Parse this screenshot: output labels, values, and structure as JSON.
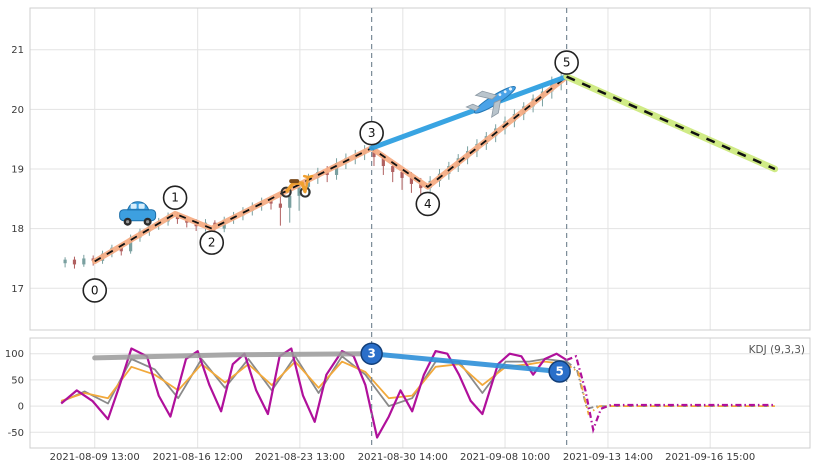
{
  "kdj_label": "KDJ (9,3,3)",
  "colors": {
    "grid": "#e3e3e3",
    "panel_border": "#cfcfcf",
    "tick_text": "#3a3a3a",
    "vline": "#7a8a96",
    "wave_orange": "#f5ad85",
    "wave_green": "#cdea7f",
    "wave_blue": "#2e9fe0",
    "wave_dash": "#111111",
    "candle_up": "#7aa0a0",
    "candle_down": "#b06060",
    "kdj_j": "#b0109b",
    "kdj_d": "#f2a93b",
    "kdj_k": "#8a8a8a",
    "overlay_gray": "#9a9a9a",
    "overlay_blue": "#2e8fd8",
    "marker_fill": "#2a6fc9",
    "marker_stroke": "#123f7a",
    "pivot_circle_fill": "#ffffff",
    "pivot_circle_stroke": "#222222",
    "car": "#3da0e0",
    "scooter": "#f0a030",
    "plane": "#4aa3e8"
  },
  "chart_data": {
    "type": "candlestick+line",
    "title": "",
    "x_ticks": [
      {
        "f": 0.083,
        "label": "2021-08-09 13:00"
      },
      {
        "f": 0.215,
        "label": "2021-08-16 12:00"
      },
      {
        "f": 0.346,
        "label": "2021-08-23 13:00"
      },
      {
        "f": 0.478,
        "label": "2021-08-30 14:00"
      },
      {
        "f": 0.609,
        "label": "2021-09-08 10:00"
      },
      {
        "f": 0.741,
        "label": "2021-09-13 14:00"
      },
      {
        "f": 0.872,
        "label": "2021-09-16 15:00"
      }
    ],
    "vlines": [
      0.438,
      0.688
    ],
    "main": {
      "ylim": [
        16.3,
        21.7
      ],
      "yticks": [
        21,
        20,
        19,
        18,
        17
      ],
      "pivots": [
        {
          "n": "0",
          "f": 0.083,
          "price": 17.45,
          "dy": 29
        },
        {
          "n": "1",
          "f": 0.186,
          "price": 18.25,
          "dy": -16
        },
        {
          "n": "2",
          "f": 0.233,
          "price": 18.0,
          "dy": 14
        },
        {
          "n": "3",
          "f": 0.438,
          "price": 19.35,
          "dy": -15
        },
        {
          "n": "4",
          "f": 0.51,
          "price": 18.7,
          "dy": 17
        },
        {
          "n": "5",
          "f": 0.688,
          "price": 20.55,
          "dy": -14
        }
      ],
      "blue_segment": [
        [
          0.438,
          19.35
        ],
        [
          0.688,
          20.55
        ]
      ],
      "forecast_end": {
        "f": 0.955,
        "price": 19.0
      },
      "icons": [
        {
          "name": "car",
          "f": 0.138,
          "price": 18.2
        },
        {
          "name": "scooter",
          "f": 0.34,
          "price": 18.73
        },
        {
          "name": "plane",
          "f": 0.596,
          "price": 20.16
        }
      ],
      "candles": [
        [
          0.045,
          17.42,
          17.48,
          17.35,
          17.52
        ],
        [
          0.057,
          17.48,
          17.4,
          17.33,
          17.53
        ],
        [
          0.069,
          17.4,
          17.5,
          17.36,
          17.56
        ],
        [
          0.081,
          17.5,
          17.46,
          17.38,
          17.55
        ],
        [
          0.093,
          17.46,
          17.58,
          17.41,
          17.63
        ],
        [
          0.105,
          17.58,
          17.68,
          17.52,
          17.73
        ],
        [
          0.117,
          17.68,
          17.62,
          17.55,
          17.76
        ],
        [
          0.129,
          17.62,
          17.85,
          17.58,
          17.9
        ],
        [
          0.141,
          17.85,
          17.95,
          17.78,
          18.0
        ],
        [
          0.153,
          17.95,
          18.05,
          17.88,
          18.1
        ],
        [
          0.165,
          18.05,
          18.12,
          17.98,
          18.18
        ],
        [
          0.177,
          18.12,
          18.22,
          18.05,
          18.27
        ],
        [
          0.189,
          18.22,
          18.16,
          18.08,
          18.28
        ],
        [
          0.201,
          18.16,
          18.1,
          18.02,
          18.22
        ],
        [
          0.213,
          18.1,
          18.04,
          17.96,
          18.16
        ],
        [
          0.225,
          18.04,
          18.1,
          17.95,
          18.16
        ],
        [
          0.237,
          18.1,
          18.0,
          17.92,
          18.14
        ],
        [
          0.249,
          18.0,
          18.15,
          17.94,
          18.2
        ],
        [
          0.261,
          18.15,
          18.22,
          18.08,
          18.28
        ],
        [
          0.273,
          18.22,
          18.3,
          18.14,
          18.36
        ],
        [
          0.285,
          18.3,
          18.38,
          18.22,
          18.44
        ],
        [
          0.297,
          18.38,
          18.46,
          18.3,
          18.52
        ],
        [
          0.309,
          18.46,
          18.42,
          18.32,
          18.55
        ],
        [
          0.321,
          18.42,
          18.35,
          18.05,
          18.62
        ],
        [
          0.333,
          18.35,
          18.55,
          18.1,
          18.7
        ],
        [
          0.345,
          18.55,
          18.7,
          18.3,
          18.8
        ],
        [
          0.357,
          18.7,
          18.85,
          18.55,
          18.92
        ],
        [
          0.369,
          18.85,
          18.95,
          18.75,
          19.02
        ],
        [
          0.381,
          18.95,
          18.9,
          18.78,
          19.05
        ],
        [
          0.393,
          18.9,
          19.1,
          18.82,
          19.18
        ],
        [
          0.405,
          19.1,
          19.18,
          19.0,
          19.26
        ],
        [
          0.417,
          19.18,
          19.25,
          19.08,
          19.32
        ],
        [
          0.429,
          19.25,
          19.32,
          19.15,
          19.4
        ],
        [
          0.441,
          19.32,
          19.2,
          19.05,
          19.38
        ],
        [
          0.453,
          19.2,
          19.05,
          18.9,
          19.26
        ],
        [
          0.465,
          19.05,
          18.95,
          18.78,
          19.12
        ],
        [
          0.477,
          18.95,
          18.85,
          18.65,
          19.02
        ],
        [
          0.489,
          18.85,
          18.75,
          18.6,
          18.95
        ],
        [
          0.501,
          18.75,
          18.68,
          18.52,
          18.85
        ],
        [
          0.513,
          18.68,
          18.8,
          18.58,
          18.88
        ],
        [
          0.525,
          18.8,
          18.92,
          18.7,
          19.0
        ],
        [
          0.537,
          18.92,
          19.05,
          18.82,
          19.12
        ],
        [
          0.549,
          19.05,
          19.18,
          18.95,
          19.25
        ],
        [
          0.561,
          19.18,
          19.3,
          19.08,
          19.38
        ],
        [
          0.573,
          19.3,
          19.42,
          19.2,
          19.5
        ],
        [
          0.585,
          19.42,
          19.55,
          19.32,
          19.62
        ],
        [
          0.597,
          19.55,
          19.68,
          19.45,
          19.75
        ],
        [
          0.609,
          19.68,
          19.8,
          19.58,
          19.88
        ],
        [
          0.621,
          19.8,
          19.92,
          19.7,
          20.0
        ],
        [
          0.633,
          19.92,
          20.05,
          19.82,
          20.12
        ],
        [
          0.645,
          20.05,
          20.18,
          19.95,
          20.25
        ],
        [
          0.657,
          20.18,
          20.3,
          20.05,
          20.38
        ],
        [
          0.669,
          20.3,
          20.45,
          20.18,
          20.55
        ],
        [
          0.681,
          20.45,
          20.55,
          20.32,
          20.62
        ]
      ]
    },
    "sub": {
      "ylim": [
        -80,
        130
      ],
      "yticks": [
        100,
        50,
        0,
        -50
      ],
      "series": {
        "J": [
          [
            0.04,
            5
          ],
          [
            0.06,
            30
          ],
          [
            0.08,
            10
          ],
          [
            0.1,
            -25
          ],
          [
            0.115,
            40
          ],
          [
            0.13,
            110
          ],
          [
            0.15,
            95
          ],
          [
            0.165,
            20
          ],
          [
            0.18,
            -20
          ],
          [
            0.2,
            90
          ],
          [
            0.215,
            105
          ],
          [
            0.23,
            40
          ],
          [
            0.245,
            -10
          ],
          [
            0.26,
            80
          ],
          [
            0.275,
            100
          ],
          [
            0.29,
            30
          ],
          [
            0.305,
            -15
          ],
          [
            0.32,
            95
          ],
          [
            0.335,
            110
          ],
          [
            0.35,
            20
          ],
          [
            0.365,
            -30
          ],
          [
            0.38,
            60
          ],
          [
            0.4,
            105
          ],
          [
            0.415,
            95
          ],
          [
            0.43,
            40
          ],
          [
            0.445,
            -60
          ],
          [
            0.46,
            -20
          ],
          [
            0.475,
            30
          ],
          [
            0.49,
            -10
          ],
          [
            0.505,
            60
          ],
          [
            0.52,
            105
          ],
          [
            0.535,
            100
          ],
          [
            0.55,
            60
          ],
          [
            0.565,
            10
          ],
          [
            0.58,
            -15
          ],
          [
            0.6,
            80
          ],
          [
            0.615,
            100
          ],
          [
            0.63,
            95
          ],
          [
            0.645,
            60
          ],
          [
            0.66,
            90
          ],
          [
            0.675,
            100
          ],
          [
            0.688,
            88
          ]
        ],
        "D": [
          [
            0.04,
            10
          ],
          [
            0.07,
            25
          ],
          [
            0.1,
            15
          ],
          [
            0.13,
            75
          ],
          [
            0.16,
            60
          ],
          [
            0.19,
            30
          ],
          [
            0.22,
            80
          ],
          [
            0.25,
            45
          ],
          [
            0.28,
            80
          ],
          [
            0.31,
            40
          ],
          [
            0.34,
            85
          ],
          [
            0.37,
            35
          ],
          [
            0.4,
            85
          ],
          [
            0.43,
            65
          ],
          [
            0.46,
            15
          ],
          [
            0.49,
            20
          ],
          [
            0.52,
            75
          ],
          [
            0.55,
            80
          ],
          [
            0.58,
            40
          ],
          [
            0.61,
            75
          ],
          [
            0.64,
            80
          ],
          [
            0.66,
            85
          ],
          [
            0.688,
            80
          ]
        ],
        "K": [
          [
            0.04,
            8
          ],
          [
            0.07,
            28
          ],
          [
            0.1,
            5
          ],
          [
            0.13,
            90
          ],
          [
            0.16,
            70
          ],
          [
            0.19,
            15
          ],
          [
            0.22,
            90
          ],
          [
            0.25,
            35
          ],
          [
            0.28,
            90
          ],
          [
            0.31,
            30
          ],
          [
            0.34,
            95
          ],
          [
            0.37,
            25
          ],
          [
            0.4,
            95
          ],
          [
            0.43,
            60
          ],
          [
            0.46,
            0
          ],
          [
            0.49,
            15
          ],
          [
            0.52,
            85
          ],
          [
            0.55,
            85
          ],
          [
            0.58,
            25
          ],
          [
            0.61,
            85
          ],
          [
            0.64,
            85
          ],
          [
            0.66,
            90
          ],
          [
            0.688,
            85
          ]
        ]
      },
      "forecast": {
        "J": [
          [
            0.688,
            88
          ],
          [
            0.7,
            95
          ],
          [
            0.712,
            30
          ],
          [
            0.722,
            -45
          ],
          [
            0.732,
            -5
          ],
          [
            0.745,
            2
          ],
          [
            0.955,
            2
          ]
        ],
        "D": [
          [
            0.688,
            80
          ],
          [
            0.703,
            65
          ],
          [
            0.716,
            -15
          ],
          [
            0.73,
            0
          ],
          [
            0.955,
            0
          ]
        ],
        "K": [
          [
            0.688,
            85
          ],
          [
            0.701,
            70
          ],
          [
            0.714,
            -5
          ],
          [
            0.728,
            0
          ],
          [
            0.955,
            0
          ]
        ]
      },
      "overlay_gray": [
        [
          0.083,
          92
        ],
        [
          0.26,
          98
        ],
        [
          0.438,
          100
        ]
      ],
      "overlay_blue": [
        [
          0.438,
          100
        ],
        [
          0.679,
          66
        ]
      ],
      "markers": [
        {
          "n": "3",
          "f": 0.438,
          "v": 100
        },
        {
          "n": "5",
          "f": 0.679,
          "v": 66
        }
      ]
    }
  }
}
